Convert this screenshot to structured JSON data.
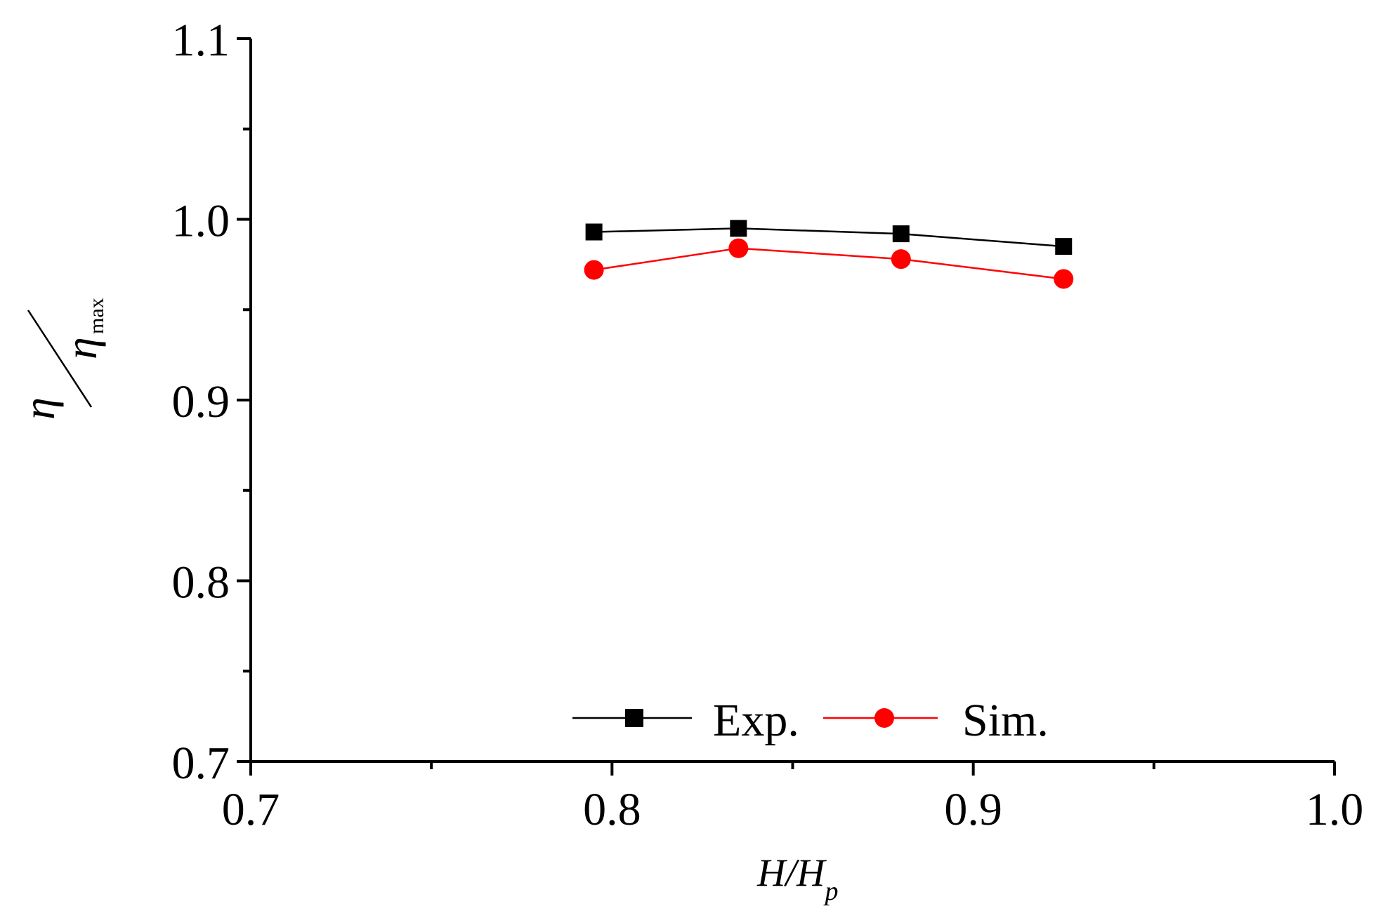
{
  "chart_data": {
    "type": "line",
    "title": "",
    "xlabel": {
      "main": "H/H",
      "sub": "p"
    },
    "ylabel": {
      "num": "η",
      "den": "η",
      "den_sub": "max"
    },
    "xlim": [
      0.7,
      1.0
    ],
    "ylim": [
      0.7,
      1.1
    ],
    "xticks": [
      0.7,
      0.8,
      0.9,
      1.0
    ],
    "xtick_labels": [
      "0.7",
      "0.8",
      "0.9",
      "1.0"
    ],
    "yticks": [
      0.7,
      0.8,
      0.9,
      1.0,
      1.1
    ],
    "ytick_labels": [
      "0.7",
      "0.8",
      "0.9",
      "1.0",
      "1.1"
    ],
    "grid": false,
    "legend_position": "bottom-center",
    "series": [
      {
        "name": "Exp.",
        "marker": "square",
        "color": "#000000",
        "x": [
          0.795,
          0.835,
          0.88,
          0.925
        ],
        "y": [
          0.993,
          0.995,
          0.992,
          0.985
        ]
      },
      {
        "name": "Sim.",
        "marker": "circle",
        "color": "#ff0000",
        "x": [
          0.795,
          0.835,
          0.88,
          0.925
        ],
        "y": [
          0.972,
          0.984,
          0.978,
          0.967
        ]
      }
    ]
  }
}
